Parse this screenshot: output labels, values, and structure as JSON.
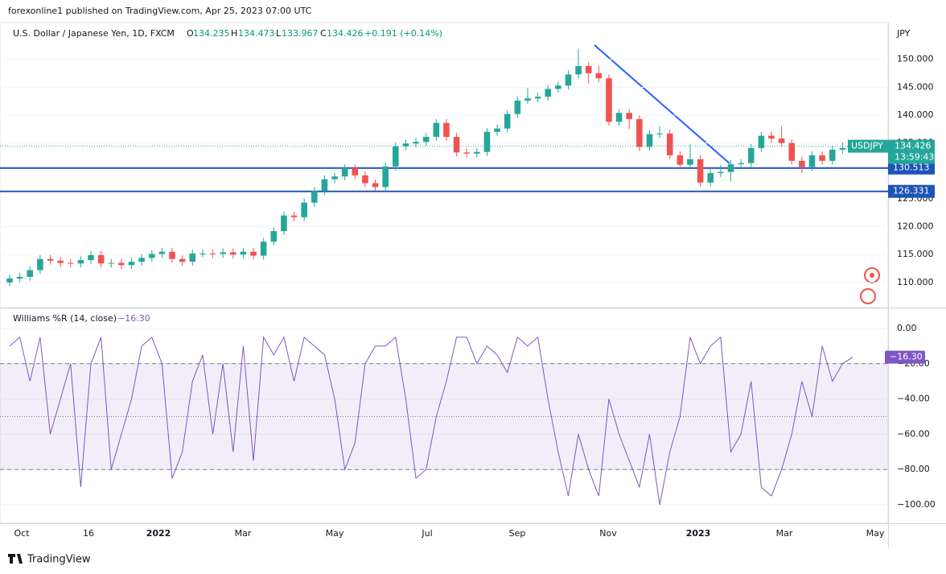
{
  "header": {
    "publisher": "forexonline1 published on TradingView.com, Apr 25, 2023 07:00 UTC",
    "footer": "TradingView"
  },
  "legend": {
    "symbol": "U.S. Dollar / Japanese Yen, 1D, FXCM",
    "open_label": "O",
    "open": 134.235,
    "high_label": "H",
    "high": 134.473,
    "low_label": "L",
    "low": 133.967,
    "close_label": "C",
    "close": 134.426,
    "change": "+0.191 (+0.14%)",
    "ticker": "USDJPY",
    "countdown": "13:59:43",
    "currency": "JPY"
  },
  "x_labels": [
    "Oct",
    "16",
    "2022",
    "Mar",
    "May",
    "Jul",
    "Sep",
    "Nov",
    "2023",
    "Mar",
    "May"
  ],
  "chart_data": [
    {
      "type": "candlestick",
      "ylim": [
        105.5,
        156.6
      ],
      "yticks": [
        {
          "value": 110,
          "label": "110.000"
        },
        {
          "value": 115,
          "label": "115.000"
        },
        {
          "value": 120,
          "label": "120.000"
        },
        {
          "value": 125,
          "label": "125.000"
        },
        {
          "value": 130,
          "label": "130.000"
        },
        {
          "value": 135,
          "label": "135.000"
        },
        {
          "value": 140,
          "label": "140.000"
        },
        {
          "value": 145,
          "label": "145.000"
        },
        {
          "value": 150,
          "label": "150.000"
        }
      ],
      "up_color": "#26a69a",
      "down_color": "#ef5350",
      "levels": [
        130.513,
        126.331
      ],
      "level_color": "#1e53b8",
      "series": [
        {
          "name": "USDJPY",
          "open": [
            110.0,
            110.7,
            111.0,
            112.2,
            114.2,
            113.9,
            113.5,
            113.4,
            114.0,
            114.9,
            113.4,
            113.5,
            113.1,
            113.7,
            114.4,
            115.1,
            115.5,
            114.2,
            113.7,
            115.2,
            115.2,
            115.1,
            115.4,
            115.0,
            115.5,
            114.8,
            117.3,
            119.2,
            122.0,
            121.7,
            124.3,
            126.4,
            128.5,
            129.0,
            130.5,
            129.2,
            127.8,
            127.1,
            130.8,
            134.4,
            134.9,
            135.2,
            136.1,
            138.6,
            136.1,
            133.3,
            133.1,
            133.4,
            137.0,
            137.6,
            140.2,
            142.6,
            143.0,
            143.3,
            144.7,
            145.3,
            147.3,
            148.8,
            147.5,
            146.6,
            138.8,
            140.4,
            139.3,
            134.3,
            136.6,
            136.7,
            132.8,
            131.1,
            132.1,
            127.9,
            129.6,
            129.8,
            131.2,
            131.4,
            134.1,
            136.3,
            135.8,
            135.0,
            131.8,
            130.7,
            132.8,
            131.8,
            133.8,
            134.1
          ],
          "high": [
            111.4,
            111.7,
            112.9,
            114.9,
            114.9,
            114.6,
            114.2,
            114.7,
            115.6,
            115.6,
            114.2,
            114.2,
            114.4,
            115.1,
            115.8,
            116.2,
            116.2,
            114.9,
            115.9,
            115.9,
            115.9,
            116.1,
            116.1,
            116.2,
            116.2,
            118.0,
            119.9,
            122.7,
            122.7,
            125.0,
            127.1,
            129.2,
            129.7,
            131.2,
            131.2,
            129.9,
            128.5,
            131.5,
            135.1,
            135.6,
            135.9,
            136.8,
            139.3,
            139.3,
            136.8,
            134.0,
            134.1,
            137.7,
            138.3,
            140.9,
            143.3,
            144.9,
            144.0,
            145.4,
            146.0,
            148.0,
            151.9,
            149.5,
            148.8,
            147.3,
            141.1,
            141.1,
            140.0,
            137.3,
            138.0,
            137.4,
            133.5,
            134.8,
            132.8,
            130.3,
            131.1,
            131.9,
            132.1,
            134.8,
            137.0,
            137.1,
            138.0,
            135.7,
            132.6,
            133.5,
            133.5,
            134.5,
            135.1,
            134.5
          ],
          "low": [
            109.3,
            110.0,
            110.3,
            111.5,
            113.2,
            112.8,
            112.7,
            112.7,
            113.3,
            112.7,
            112.7,
            112.4,
            112.4,
            113.0,
            113.7,
            114.4,
            113.5,
            113.0,
            113.0,
            114.5,
            114.4,
            114.4,
            114.3,
            114.3,
            114.1,
            114.1,
            116.6,
            118.5,
            121.0,
            121.0,
            123.6,
            125.7,
            127.8,
            128.3,
            128.5,
            127.1,
            126.4,
            126.4,
            130.1,
            133.7,
            134.2,
            134.5,
            135.4,
            135.4,
            132.6,
            132.4,
            132.4,
            132.7,
            136.3,
            136.9,
            139.5,
            142.0,
            142.3,
            142.6,
            144.0,
            144.6,
            146.6,
            145.7,
            145.9,
            138.1,
            138.1,
            137.5,
            133.6,
            133.6,
            135.9,
            132.1,
            130.4,
            130.4,
            127.2,
            127.2,
            128.9,
            128.1,
            130.5,
            130.7,
            133.4,
            135.1,
            134.3,
            131.1,
            129.6,
            130.0,
            131.1,
            131.1,
            133.1,
            133.4
          ],
          "close": [
            110.7,
            111.0,
            112.2,
            114.2,
            113.9,
            113.5,
            113.4,
            114.0,
            114.9,
            113.4,
            113.5,
            113.1,
            113.7,
            114.4,
            115.1,
            115.5,
            114.2,
            113.7,
            115.2,
            115.2,
            115.1,
            115.4,
            115.0,
            115.5,
            114.8,
            117.3,
            119.2,
            122.0,
            121.7,
            124.3,
            126.4,
            128.5,
            129.0,
            130.5,
            129.2,
            127.8,
            127.1,
            130.8,
            134.4,
            134.9,
            135.2,
            136.1,
            138.6,
            136.1,
            133.3,
            133.1,
            133.4,
            137.0,
            137.6,
            140.2,
            142.6,
            143.0,
            143.3,
            144.7,
            145.3,
            147.3,
            148.8,
            147.5,
            146.6,
            138.8,
            140.4,
            139.3,
            134.3,
            136.6,
            136.7,
            132.8,
            131.1,
            132.1,
            127.9,
            129.6,
            129.8,
            131.2,
            131.4,
            134.1,
            136.3,
            135.8,
            135.0,
            131.8,
            130.7,
            132.8,
            131.8,
            133.8,
            134.1,
            134.4
          ]
        }
      ]
    },
    {
      "type": "line",
      "title": "Williams %R (14, close)",
      "ylim": [
        -110.5,
        11.4
      ],
      "yticks": [
        {
          "value": 0,
          "label": "0.00"
        },
        {
          "value": -20,
          "label": "−20.00"
        },
        {
          "value": -40,
          "label": "−40.00"
        },
        {
          "value": -60,
          "label": "−60.00"
        },
        {
          "value": -80,
          "label": "−80.00"
        },
        {
          "value": -100,
          "label": "−100.00"
        }
      ],
      "band": [
        -80,
        -20
      ],
      "middle": -50,
      "series": [
        {
          "name": "Williams %R",
          "color": "#7e57c2",
          "values": [
            -10,
            -5,
            -30,
            -5,
            -60,
            -40,
            -20,
            -90,
            -20,
            -5,
            -80,
            -60,
            -40,
            -10,
            -5,
            -20,
            -85,
            -70,
            -30,
            -15,
            -60,
            -20,
            -70,
            -10,
            -75,
            -5,
            -15,
            -5,
            -30,
            -5,
            -10,
            -15,
            -40,
            -80,
            -65,
            -20,
            -10,
            -10,
            -5,
            -40,
            -85,
            -80,
            -50,
            -30,
            -5,
            -5,
            -20,
            -10,
            -15,
            -25,
            -5,
            -10,
            -5,
            -40,
            -70,
            -95,
            -60,
            -80,
            -95,
            -40,
            -60,
            -75,
            -90,
            -60,
            -100,
            -70,
            -50,
            -5,
            -20,
            -10,
            -5,
            -70,
            -60,
            -30,
            -90,
            -95,
            -80,
            -60,
            -30,
            -50,
            -10,
            -30,
            -20,
            -16.3
          ],
          "value_labels": [
            null,
            null,
            null,
            null,
            null,
            null,
            null,
            null,
            null,
            null,
            null,
            null,
            null,
            null,
            null,
            null,
            null,
            null,
            null,
            null,
            null,
            null,
            null,
            null,
            null,
            null,
            null,
            null,
            null,
            null,
            null,
            null,
            null,
            null,
            null,
            null,
            null,
            null,
            null,
            null,
            null,
            null,
            null,
            null,
            null,
            null,
            null,
            null,
            null,
            null,
            null,
            null,
            null,
            null,
            null,
            null,
            null,
            null,
            null,
            null,
            null,
            null,
            null,
            null,
            null,
            null,
            null,
            null,
            null,
            null,
            null,
            null,
            null,
            null,
            null,
            null,
            null,
            null,
            null,
            null,
            null,
            null,
            null,
            "−16.30"
          ]
        }
      ]
    }
  ]
}
